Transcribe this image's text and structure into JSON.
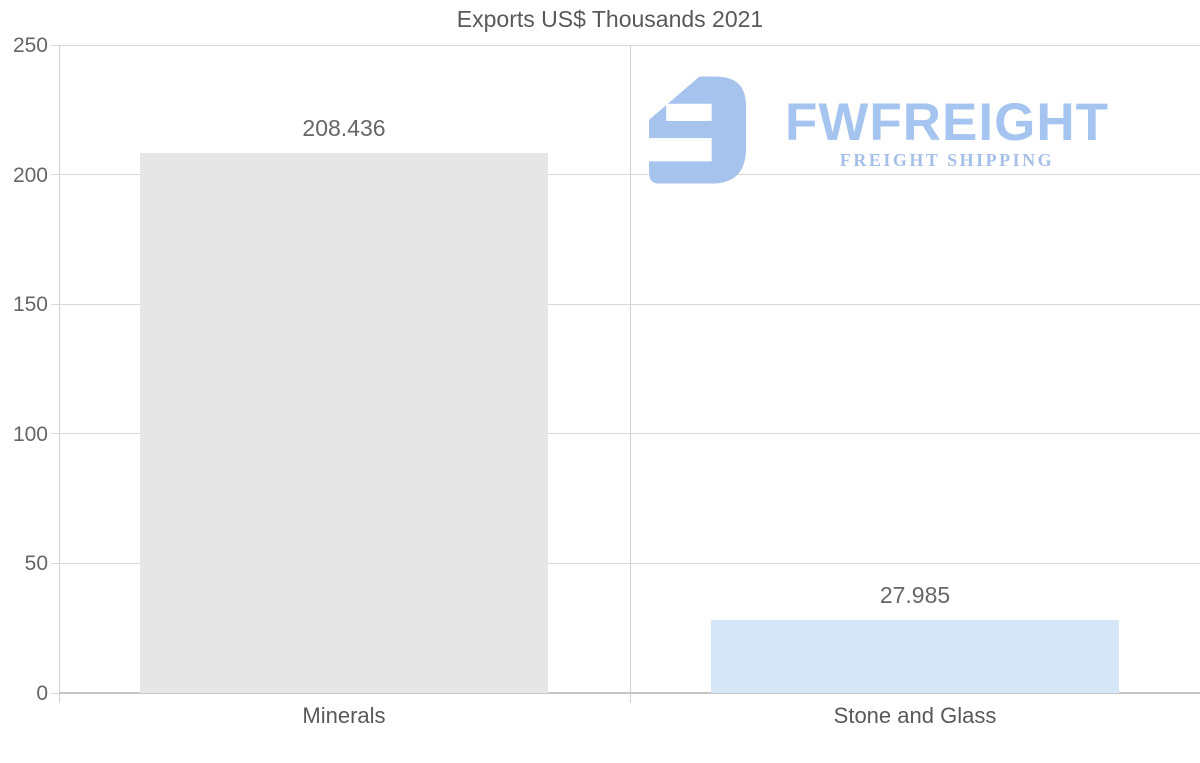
{
  "title": "Exports US$ Thousands 2021",
  "logo": {
    "brand": "FWFREIGHT",
    "tagline": "FREIGHT SHIPPING",
    "icon": "fwfreight-logo-icon",
    "icon_color": "#a6c3ee",
    "brand_color": "#a5c4f0",
    "tagline_color": "#a6bfe9"
  },
  "colors": {
    "background": "#ffffff",
    "grid": "#d9d9d9",
    "axis": "#c6c6c6",
    "text": "#595959",
    "tick_text": "#666666"
  },
  "chart_data": {
    "type": "bar",
    "title": "Exports US$ Thousands 2021",
    "categories": [
      "Minerals",
      "Stone and Glass"
    ],
    "values": [
      208.436,
      27.985
    ],
    "value_labels": [
      "208.436",
      "27.985"
    ],
    "bar_colors": [
      "#e6e6e6",
      "#d6e8f8"
    ],
    "xlabel": "",
    "ylabel": "",
    "ylim": [
      0,
      250
    ],
    "yticks": [
      0,
      50,
      100,
      150,
      200,
      250
    ],
    "grid": true,
    "legend": false
  }
}
